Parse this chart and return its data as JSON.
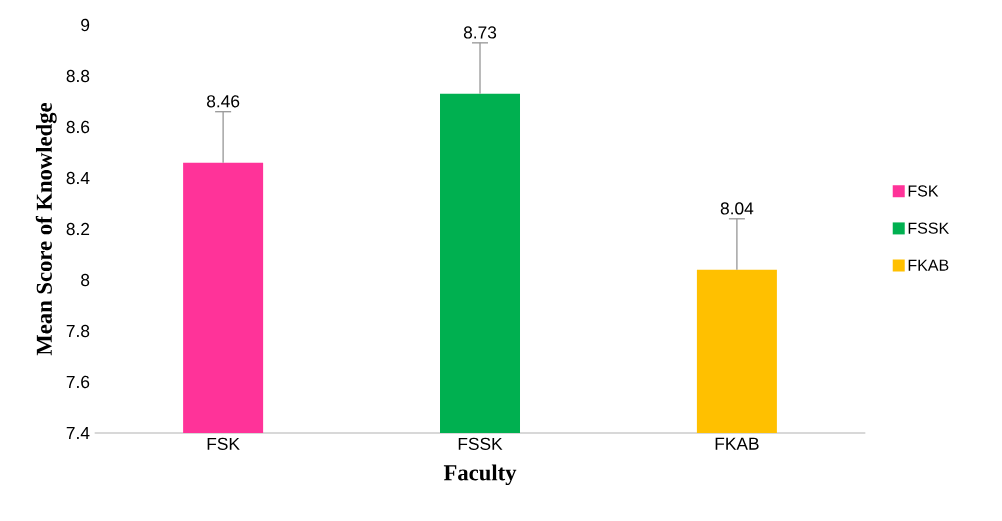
{
  "chart_data": {
    "type": "bar",
    "xlabel": "Faculty",
    "ylabel": "Mean Score of Knowledge",
    "categories": [
      "FSK",
      "FSSK",
      "FKAB"
    ],
    "series": [
      {
        "name": "FSK",
        "color": "#ff3399",
        "values": [
          8.46,
          null,
          null
        ],
        "errors": [
          [
            8.46,
            8.66
          ],
          null,
          null
        ]
      },
      {
        "name": "FSSK",
        "color": "#00b050",
        "values": [
          null,
          8.73,
          null
        ],
        "errors": [
          null,
          [
            8.73,
            8.93
          ],
          null
        ]
      },
      {
        "name": "FKAB",
        "color": "#ffc000",
        "values": [
          null,
          null,
          8.04
        ],
        "errors": [
          null,
          null,
          [
            8.04,
            8.24
          ]
        ]
      }
    ],
    "ylim": [
      7.4,
      9
    ],
    "yticks": [
      7.4,
      7.6,
      7.8,
      8,
      8.2,
      8.4,
      8.6,
      8.8,
      9
    ],
    "data_labels": true,
    "grid": false,
    "legend": "right"
  }
}
